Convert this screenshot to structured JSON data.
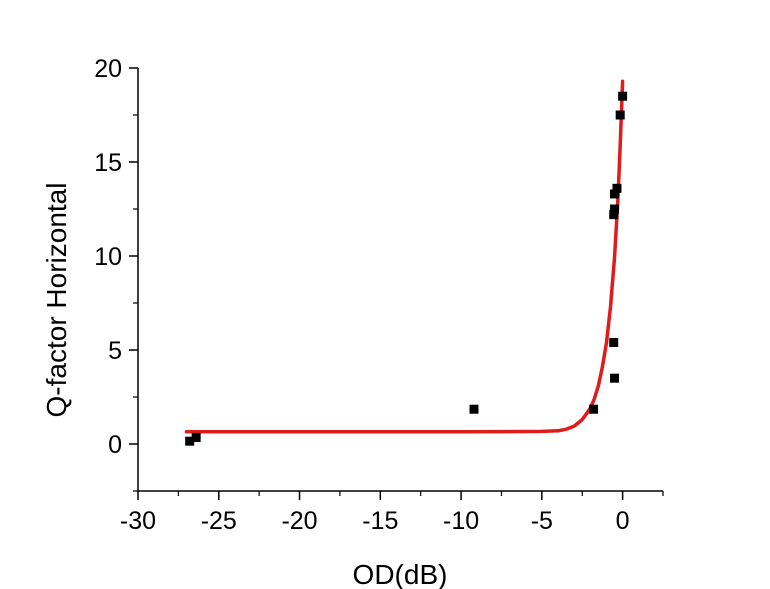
{
  "chart_data": {
    "type": "scatter",
    "title": "",
    "xlabel": "OD(dB)",
    "ylabel": "Q-factor Horizontal",
    "xlim": [
      -30,
      2.5
    ],
    "ylim": [
      -2.5,
      20
    ],
    "x_ticks": [
      -30,
      -25,
      -20,
      -15,
      -10,
      -5,
      0
    ],
    "x_tick_labels": [
      "-30",
      "-25",
      "-20",
      "-15",
      "-10",
      "-5",
      "0"
    ],
    "y_ticks": [
      0,
      5,
      10,
      15,
      20
    ],
    "y_tick_labels": [
      "0",
      "5",
      "10",
      "15",
      "20"
    ],
    "grid": false,
    "legend": "none",
    "series": [
      {
        "kind": "scatter",
        "color": "#000000",
        "marker": "square",
        "points": [
          [
            -26.8,
            0.15
          ],
          [
            -26.4,
            0.35
          ],
          [
            -9.2,
            1.85
          ],
          [
            -1.8,
            1.85
          ],
          [
            -0.55,
            5.4
          ],
          [
            -0.5,
            3.5
          ],
          [
            -0.55,
            12.2
          ],
          [
            -0.5,
            12.5
          ],
          [
            -0.5,
            13.3
          ],
          [
            -0.35,
            13.6
          ],
          [
            -0.15,
            17.5
          ],
          [
            0.0,
            18.5
          ]
        ]
      },
      {
        "kind": "fit-line",
        "color": "#e01b1b",
        "points": [
          [
            -27.0,
            0.65
          ],
          [
            -20.0,
            0.65
          ],
          [
            -10.0,
            0.65
          ],
          [
            -5.0,
            0.67
          ],
          [
            -4.0,
            0.7
          ],
          [
            -3.5,
            0.78
          ],
          [
            -3.0,
            0.95
          ],
          [
            -2.5,
            1.3
          ],
          [
            -2.0,
            1.9
          ],
          [
            -1.75,
            2.4
          ],
          [
            -1.5,
            3.1
          ],
          [
            -1.25,
            4.1
          ],
          [
            -1.0,
            5.4
          ],
          [
            -0.75,
            7.3
          ],
          [
            -0.5,
            9.9
          ],
          [
            -0.3,
            12.9
          ],
          [
            -0.15,
            15.9
          ],
          [
            0.0,
            19.3
          ]
        ]
      }
    ]
  }
}
